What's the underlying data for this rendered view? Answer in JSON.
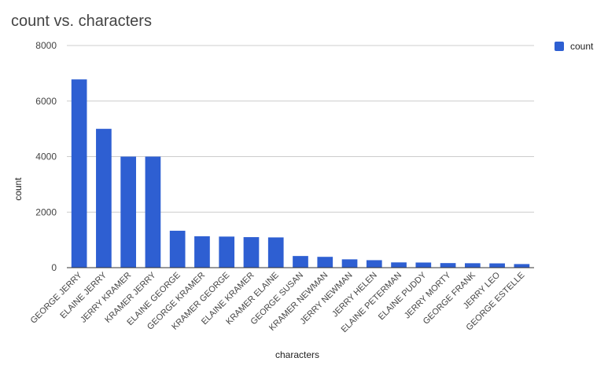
{
  "chart_data": {
    "type": "bar",
    "title": "count vs. characters",
    "xlabel": "characters",
    "ylabel": "count",
    "ylim": [
      0,
      8000
    ],
    "yticks": [
      "0",
      "2000",
      "4000",
      "6000",
      "8000"
    ],
    "grid": true,
    "legend_position": "top-right",
    "color": "#2E5FD2",
    "categories": [
      "GEORGE JERRY",
      "ELAINE JERRY",
      "JERRY KRAMER",
      "KRAMER JERRY",
      "ELAINE GEORGE",
      "GEORGE KRAMER",
      "KRAMER GEORGE",
      "ELAINE KRAMER",
      "KRAMER ELAINE",
      "GEORGE SUSAN",
      "KRAMER NEWMAN",
      "JERRY NEWMAN",
      "JERRY HELEN",
      "ELAINE PETERMAN",
      "ELAINE PUDDY",
      "JERRY MORTY",
      "GEORGE FRANK",
      "JERRY LEO",
      "GEORGE ESTELLE"
    ],
    "series": [
      {
        "name": "count",
        "values": [
          6780,
          5000,
          4000,
          4000,
          1330,
          1130,
          1120,
          1100,
          1090,
          420,
          390,
          300,
          270,
          190,
          185,
          165,
          160,
          155,
          130
        ]
      }
    ]
  }
}
